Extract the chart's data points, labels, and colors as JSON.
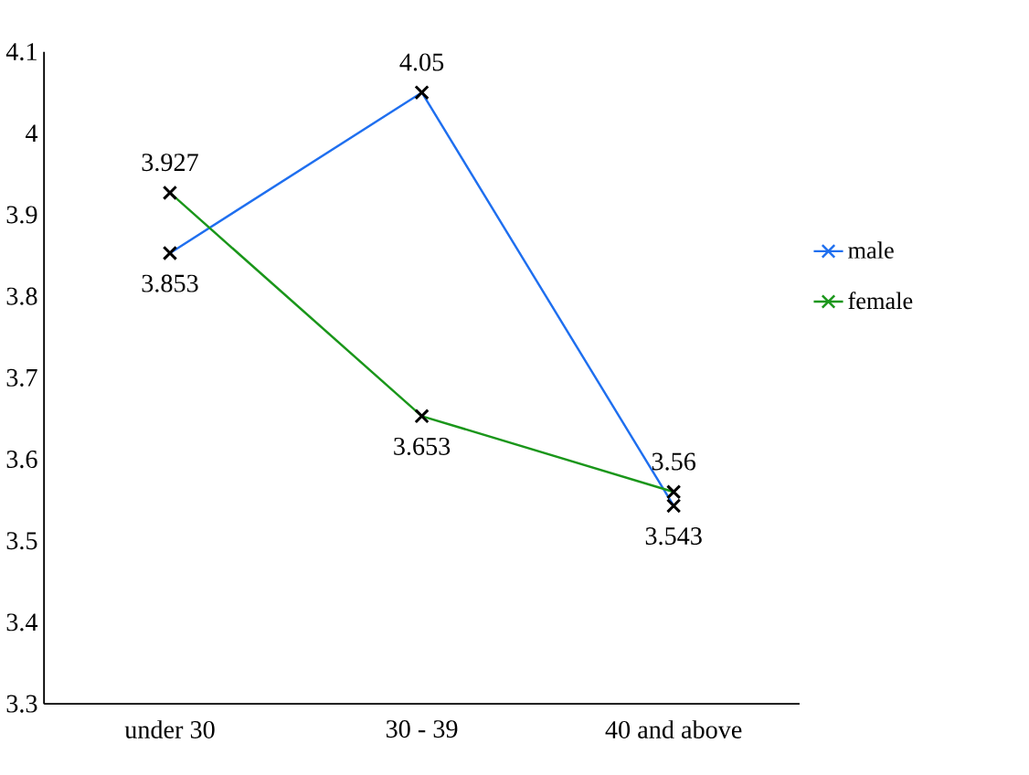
{
  "chart_data": {
    "type": "line",
    "categories": [
      "under 30",
      "30 - 39",
      "40 and above"
    ],
    "series": [
      {
        "name": "male",
        "color": "#1f6fef",
        "values": [
          3.853,
          4.05,
          3.543
        ]
      },
      {
        "name": "female",
        "color": "#1a961a",
        "values": [
          3.927,
          3.653,
          3.56
        ]
      }
    ],
    "ylim": [
      3.3,
      4.1
    ],
    "yticks": [
      3.3,
      3.4,
      3.5,
      3.6,
      3.7,
      3.8,
      3.9,
      4,
      4.1
    ],
    "grid": false,
    "legend": "right",
    "marker": "cross",
    "line_style": "solid",
    "data_labels": true
  }
}
